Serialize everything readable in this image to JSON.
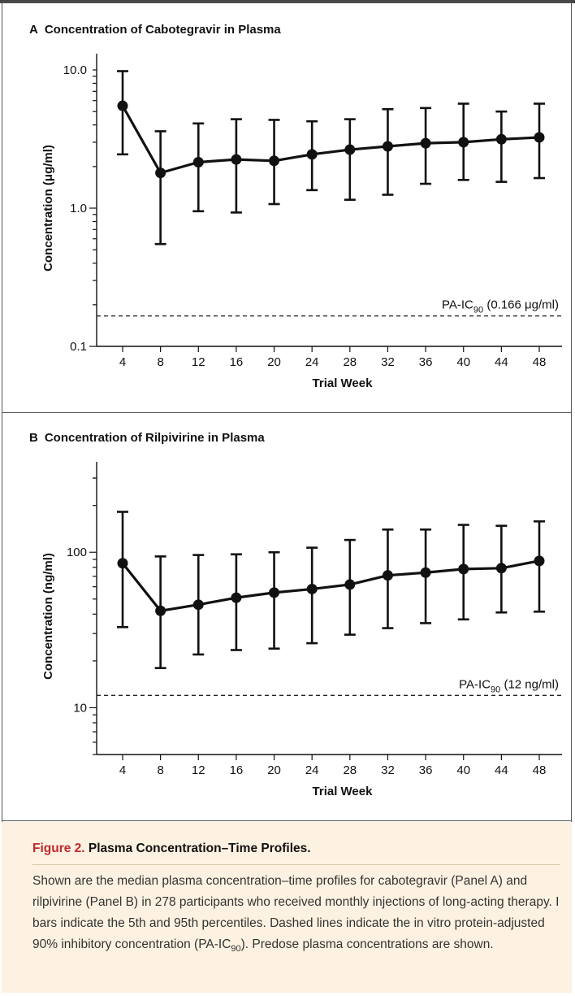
{
  "chart_data": [
    {
      "type": "line",
      "panel": "A",
      "title": "Concentration of Cabotegravir in Plasma",
      "xlabel": "Trial Week",
      "ylabel": "Concentration (μg/ml)",
      "yscale": "log",
      "ylim": [
        0.1,
        10.0
      ],
      "yticks": [
        {
          "value": 0.1,
          "label": "0.1"
        },
        {
          "value": 1.0,
          "label": "1.0"
        },
        {
          "value": 10.0,
          "label": "10.0"
        }
      ],
      "x": [
        4,
        8,
        12,
        16,
        20,
        24,
        28,
        32,
        36,
        40,
        44,
        48
      ],
      "series": [
        {
          "median": [
            5.5,
            1.8,
            2.15,
            2.25,
            2.2,
            2.45,
            2.65,
            2.8,
            2.95,
            3.0,
            3.15,
            3.25
          ],
          "p5": [
            2.45,
            0.55,
            0.95,
            0.93,
            1.07,
            1.35,
            1.15,
            1.25,
            1.5,
            1.6,
            1.55,
            1.65
          ],
          "p95": [
            9.8,
            3.6,
            4.1,
            4.4,
            4.35,
            4.25,
            4.4,
            5.2,
            5.3,
            5.7,
            5.0,
            5.7
          ]
        }
      ],
      "reference_line": {
        "value": 0.166,
        "label_prefix": "PA-IC",
        "label_sub": "90",
        "label_suffix": " (0.166 μg/ml)"
      },
      "grid": false
    },
    {
      "type": "line",
      "panel": "B",
      "title": "Concentration of Rilpivirine in Plasma",
      "xlabel": "Trial Week",
      "ylabel": "Concentration (ng/ml)",
      "yscale": "log",
      "ylim": [
        5,
        300
      ],
      "yticks": [
        {
          "value": 10,
          "label": "10"
        },
        {
          "value": 100,
          "label": "100"
        }
      ],
      "x": [
        4,
        8,
        12,
        16,
        20,
        24,
        28,
        32,
        36,
        40,
        44,
        48
      ],
      "series": [
        {
          "median": [
            85,
            42,
            46,
            51,
            55,
            58,
            62,
            71,
            74,
            78,
            79,
            88
          ],
          "p5": [
            33,
            18,
            22,
            23.5,
            24,
            26,
            29.5,
            32.5,
            35,
            37,
            41,
            41.5
          ],
          "p95": [
            182,
            94,
            96,
            97,
            100,
            107,
            120,
            140,
            140,
            150,
            148,
            158
          ]
        }
      ],
      "reference_line": {
        "value": 12,
        "label_prefix": "PA-IC",
        "label_sub": "90",
        "label_suffix": " (12 ng/ml)"
      },
      "grid": false
    }
  ],
  "caption": {
    "figure_label": "Figure 2.",
    "title": " Plasma Concentration–Time Profiles.",
    "body_part1": "Shown are the median plasma concentration–time profiles for cabotegravir (Panel A) and rilpivirine (Panel B) in 278 participants who received monthly injections of long-acting therapy. I bars indicate the 5th and 95th percentiles. Dashed lines indicate the in vitro protein-adjusted 90% inhibitory concentration (PA-IC",
    "body_sub": "90",
    "body_part2": "). Predose plasma concentrations are shown."
  }
}
